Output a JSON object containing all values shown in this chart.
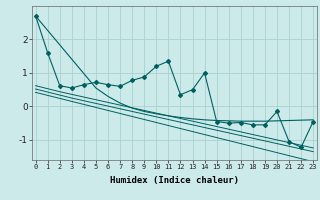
{
  "xlabel": "Humidex (Indice chaleur)",
  "x": [
    0,
    1,
    2,
    3,
    4,
    5,
    6,
    7,
    8,
    9,
    10,
    11,
    12,
    13,
    14,
    15,
    16,
    17,
    18,
    19,
    20,
    21,
    22,
    23
  ],
  "line_main": [
    2.7,
    1.6,
    0.62,
    0.55,
    0.65,
    0.72,
    0.65,
    0.6,
    0.78,
    0.88,
    1.2,
    1.35,
    0.35,
    0.5,
    1.0,
    -0.45,
    -0.5,
    -0.48,
    -0.55,
    -0.55,
    -0.15,
    -1.05,
    -1.22,
    -0.45
  ],
  "line_top": [
    2.7,
    2.27,
    1.84,
    1.41,
    0.98,
    0.55,
    0.3,
    0.1,
    -0.05,
    -0.15,
    -0.22,
    -0.28,
    -0.33,
    -0.37,
    -0.4,
    -0.42,
    -0.43,
    -0.44,
    -0.44,
    -0.44,
    -0.43,
    -0.42,
    -0.41,
    -0.4
  ],
  "line_mid1": [
    0.62,
    0.53,
    0.44,
    0.36,
    0.28,
    0.2,
    0.12,
    0.04,
    -0.04,
    -0.12,
    -0.2,
    -0.28,
    -0.36,
    -0.44,
    -0.52,
    -0.6,
    -0.68,
    -0.76,
    -0.84,
    -0.92,
    -1.0,
    -1.08,
    -1.16,
    -1.24
  ],
  "line_mid2": [
    0.52,
    0.43,
    0.34,
    0.25,
    0.17,
    0.09,
    0.01,
    -0.07,
    -0.15,
    -0.23,
    -0.31,
    -0.39,
    -0.47,
    -0.55,
    -0.63,
    -0.71,
    -0.79,
    -0.87,
    -0.95,
    -1.03,
    -1.11,
    -1.19,
    -1.27,
    -1.35
  ],
  "line_bot": [
    0.42,
    0.33,
    0.24,
    0.15,
    0.06,
    -0.03,
    -0.12,
    -0.21,
    -0.3,
    -0.39,
    -0.48,
    -0.57,
    -0.66,
    -0.75,
    -0.84,
    -0.93,
    -1.02,
    -1.11,
    -1.2,
    -1.29,
    -1.38,
    -1.47,
    -1.56,
    -1.65
  ],
  "bg_color": "#cceaea",
  "grid_color": "#aad0d0",
  "line_color": "#006060",
  "ylim": [
    -1.6,
    3.0
  ],
  "yticks": [
    -1,
    0,
    1,
    2
  ],
  "xlim": [
    -0.3,
    23.3
  ],
  "figsize": [
    3.2,
    2.0
  ],
  "dpi": 100
}
